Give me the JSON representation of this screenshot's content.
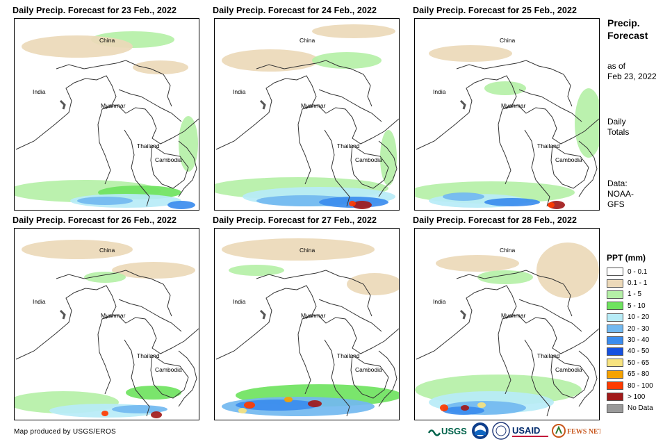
{
  "panels": [
    {
      "title": "Daily Precip. Forecast for 23 Feb., 2022"
    },
    {
      "title": "Daily Precip. Forecast for 24 Feb., 2022"
    },
    {
      "title": "Daily Precip. Forecast for 25 Feb., 2022"
    },
    {
      "title": "Daily Precip. Forecast for 26 Feb., 2022"
    },
    {
      "title": "Daily Precip. Forecast for 27 Feb., 2022"
    },
    {
      "title": "Daily Precip. Forecast for 28 Feb., 2022"
    }
  ],
  "map_labels": {
    "china": "China",
    "india": "India",
    "myanmar": "Myanmar",
    "thailand": "Thailand",
    "cambodia": "Cambodia"
  },
  "sidebar": {
    "title_line1": "Precip.",
    "title_line2": "Forecast",
    "asof_line1": "as of",
    "asof_line2": "Feb 23, 2022",
    "daily_line1": "Daily",
    "daily_line2": "Totals",
    "data_line1": "Data:",
    "data_line2": "NOAA-",
    "data_line3": "GFS"
  },
  "legend": {
    "title": "PPT (mm)",
    "items": [
      {
        "label": "0 - 0.1",
        "color": "#ffffff"
      },
      {
        "label": "0.1 - 1",
        "color": "#ecd9b9"
      },
      {
        "label": "1 - 5",
        "color": "#b5f0a7"
      },
      {
        "label": "5 - 10",
        "color": "#6fe35f"
      },
      {
        "label": "10 - 20",
        "color": "#b7ecf7"
      },
      {
        "label": "20 - 30",
        "color": "#72b9f0"
      },
      {
        "label": "30 - 40",
        "color": "#3b8cee"
      },
      {
        "label": "40 - 50",
        "color": "#1651e0"
      },
      {
        "label": "50 - 65",
        "color": "#f7e37f"
      },
      {
        "label": "65 - 80",
        "color": "#f6a200"
      },
      {
        "label": "80 - 100",
        "color": "#ff3b00"
      },
      {
        "label": "> 100",
        "color": "#a21a1a"
      },
      {
        "label": "No Data",
        "color": "#999999"
      }
    ]
  },
  "footer": {
    "credit": "Map produced by USGS/EROS",
    "logo_usgs": "USGS",
    "logo_usaid": "USAID",
    "logo_fewsnet": "FEWS NET"
  }
}
